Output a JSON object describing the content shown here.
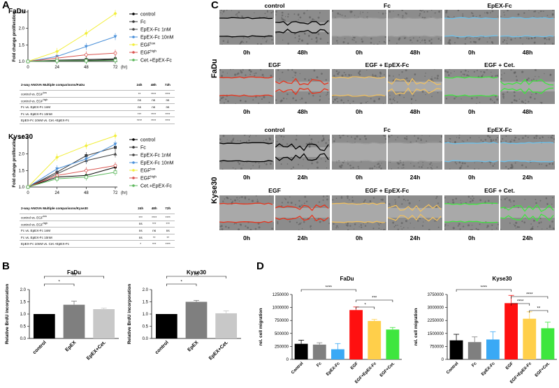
{
  "panels": {
    "A": "A",
    "B": "B",
    "C": "C",
    "D": "D"
  },
  "colors": {
    "control": "#000000",
    "fc": "#333333",
    "epex_1nm": "#444444",
    "epex_10nm": "#4a90d9",
    "egf_low": "#f2ee3a",
    "egf_high": "#d9534f",
    "cet_epex": "#5cb85c",
    "bar_control": "#000000",
    "bar_epex": "#7f7f7f",
    "bar_cet": "#c8c8c8",
    "d_control": "#000000",
    "d_fc": "#7f7f7f",
    "d_epex": "#3aa9f5",
    "d_egf": "#ff1010",
    "d_egf_epex": "#ffcf4a",
    "d_egf_cet": "#3ee63e"
  },
  "a_charts": [
    {
      "title": "FaDu",
      "ylabel": "Fold change proliferation",
      "xlabel": "(hr)",
      "xticks": [
        0,
        24,
        48,
        72
      ],
      "yticks": [
        1.0,
        1.5,
        2.0,
        2.5
      ],
      "ylim": [
        1.0,
        2.5
      ],
      "series": [
        {
          "key": "control",
          "name": "control",
          "values": [
            1.0,
            1.02,
            1.03,
            1.05
          ]
        },
        {
          "key": "fc",
          "name": "Fc",
          "values": [
            1.0,
            1.04,
            1.06,
            1.08
          ]
        },
        {
          "key": "epex_1nm",
          "name": "EpEX-Fc 1nM",
          "values": [
            1.0,
            1.03,
            1.05,
            1.07
          ]
        },
        {
          "key": "epex_10nm",
          "name": "EpEX-Fc 10nM",
          "values": [
            1.0,
            1.15,
            1.45,
            1.75
          ]
        },
        {
          "key": "egf_low",
          "name": "EGF",
          "sup": "low",
          "values": [
            1.0,
            1.3,
            1.85,
            2.45
          ]
        },
        {
          "key": "egf_high",
          "name": "EGF",
          "sup": "high",
          "values": [
            1.0,
            1.1,
            1.2,
            1.25
          ]
        },
        {
          "key": "cet_epex",
          "name": "Cet.+EpEX-Fc",
          "values": [
            1.0,
            1.02,
            1.02,
            1.03
          ]
        }
      ]
    },
    {
      "title": "Kyse30",
      "ylabel": "Fold change proliferation",
      "xlabel": "(hr)",
      "xticks": [
        0,
        24,
        48,
        72
      ],
      "yticks": [
        1.0,
        1.5,
        2.0,
        2.5
      ],
      "ylim": [
        1.0,
        2.5
      ],
      "series": [
        {
          "key": "control",
          "name": "control",
          "values": [
            1.0,
            1.3,
            1.35,
            1.6
          ]
        },
        {
          "key": "fc",
          "name": "Fc",
          "values": [
            1.0,
            1.45,
            1.95,
            2.2
          ]
        },
        {
          "key": "epex_1nm",
          "name": "EpEX-Fc 1nM",
          "values": [
            1.0,
            1.4,
            1.8,
            2.0
          ]
        },
        {
          "key": "epex_10nm",
          "name": "EpEX-Fc 10nM",
          "values": [
            1.0,
            1.55,
            1.85,
            2.3
          ]
        },
        {
          "key": "egf_low",
          "name": "EGF",
          "sup": "low",
          "values": [
            1.0,
            1.9,
            2.25,
            2.55
          ]
        },
        {
          "key": "egf_high",
          "name": "EGF",
          "sup": "high",
          "values": [
            1.0,
            1.35,
            1.5,
            1.65
          ]
        },
        {
          "key": "cet_epex",
          "name": "Cet.+EpEX-Fc",
          "values": [
            1.0,
            1.25,
            1.3,
            1.45
          ]
        }
      ]
    }
  ],
  "a_tables": [
    {
      "head": [
        "2-way ANOVA Multiple comparisons/FaDu",
        "24h",
        "48h",
        "72h"
      ],
      "rows": [
        [
          "control vs. EGF",
          "low",
          "**",
          "****",
          "****"
        ],
        [
          "control vs. EGF",
          "high",
          "ns",
          "ns",
          "ns"
        ],
        [
          "Fc vs. EpEX-Fc 1nM",
          "",
          "ns",
          "ns",
          "ns"
        ],
        [
          "Fc vs. EpEX-Fc 10nM",
          "",
          "***",
          "****",
          "****"
        ],
        [
          "EpEX-Fc 10nM vs. Cet.+EpEX-Fc",
          "",
          "****",
          "****",
          "****"
        ]
      ]
    },
    {
      "head": [
        "2-way ANOVA Multiple comparisons/Kyse30",
        "24h",
        "48h",
        "72h"
      ],
      "rows": [
        [
          "control vs. EGF",
          "low",
          "***",
          "****",
          "****"
        ],
        [
          "control vs. EGF",
          "high",
          "ns",
          "***",
          "***"
        ],
        [
          "Fc vs. EpEX-Fc 1nM",
          "",
          "ns",
          "ns",
          "ns"
        ],
        [
          "Fc vs. EpEX-Fc 10nM",
          "",
          "ns",
          "**",
          "**"
        ],
        [
          "EpEX-Fc 10nM vs. Cet.+EpEX-Fc",
          "",
          "*",
          "***",
          "****"
        ]
      ]
    }
  ],
  "c_panel": {
    "row_labels": [
      "FaDu",
      "Kyse30"
    ],
    "fadu_top": [
      {
        "title": "control",
        "times": [
          "0h",
          "48h"
        ],
        "line": "#000000"
      },
      {
        "title": "Fc",
        "times": [
          "0h",
          "48h"
        ],
        "line": "#999999"
      },
      {
        "title": "EpEX-Fc",
        "times": [
          "0h",
          "48h"
        ],
        "line": "#6ec1ea"
      }
    ],
    "fadu_bot": [
      {
        "title": "EGF",
        "times": [
          "0h",
          "48h"
        ],
        "line": "#e8341c"
      },
      {
        "title": "EGF + EpEX-Fc",
        "times": [
          "0h",
          "48h"
        ],
        "line": "#f0c060"
      },
      {
        "title": "EGF + Cet.",
        "times": [
          "0h",
          "48h"
        ],
        "line": "#3ee63e"
      }
    ],
    "kyse_top": [
      {
        "title": "control",
        "times": [
          "0h",
          "24h"
        ],
        "line": "#000000"
      },
      {
        "title": "Fc",
        "times": [
          "0h",
          "24h"
        ],
        "line": "#999999"
      },
      {
        "title": "EpEX-Fc",
        "times": [
          "0h",
          "24h"
        ],
        "line": "#6ec1ea"
      }
    ],
    "kyse_bot": [
      {
        "title": "EGF",
        "times": [
          "0h",
          "24h"
        ],
        "line": "#e8341c"
      },
      {
        "title": "EGF + EpEX-Fc",
        "times": [
          "0h",
          "24h"
        ],
        "line": "#f0c060"
      },
      {
        "title": "EGF + Cet.",
        "times": [
          "0h",
          "24h"
        ],
        "line": "#3ee63e"
      }
    ]
  },
  "chart_data": [
    {
      "type": "bar",
      "panel": "B",
      "title": "FaDu",
      "ylabel": "Relative BrdU incorporation",
      "ylim": [
        0,
        2.0
      ],
      "yticks": [
        "0.0",
        "0.5",
        "1.0",
        "1.5",
        "2.0"
      ],
      "categories": [
        "control",
        "EpEX",
        "EpEX+Cet."
      ],
      "values": [
        1.0,
        1.38,
        1.2
      ],
      "errors": [
        0,
        0.15,
        0.04
      ],
      "sig": [
        {
          "from": 0,
          "to": 1,
          "label": "*"
        },
        {
          "from": 0,
          "to": 2,
          "label": "ns"
        }
      ]
    },
    {
      "type": "bar",
      "panel": "B",
      "title": "Kyse30",
      "ylabel": "Relative BrdU incorporation",
      "ylim": [
        0,
        2.0
      ],
      "yticks": [
        "0.0",
        "0.5",
        "1.0",
        "1.5",
        "2.0"
      ],
      "categories": [
        "control",
        "EpEX",
        "EpEX+Cet."
      ],
      "values": [
        1.0,
        1.5,
        1.03
      ],
      "errors": [
        0,
        0.06,
        0.1
      ],
      "sig": [
        {
          "from": 0,
          "to": 1,
          "label": "*"
        },
        {
          "from": 0,
          "to": 2,
          "label": "ns"
        }
      ]
    },
    {
      "type": "bar",
      "panel": "D",
      "title": "FaDu",
      "ylabel": "rel. cell migration",
      "ylim": [
        0,
        1250000
      ],
      "yticks": [
        "0",
        "250000",
        "500000",
        "750000",
        "1000000",
        "1250000"
      ],
      "categories": [
        "Control",
        "Fc",
        "EpEX-Fc",
        "EGF",
        "EGF+EpEX-Fc",
        "EGF+Cet."
      ],
      "values": [
        300000,
        285000,
        195000,
        950000,
        740000,
        575000
      ],
      "errors": [
        70000,
        35000,
        110000,
        60000,
        30000,
        40000
      ],
      "sig": [
        {
          "from": 0,
          "to": 3,
          "label": "****"
        },
        {
          "from": 3,
          "to": 5,
          "label": "***"
        },
        {
          "from": 3,
          "to": 4,
          "label": "*"
        }
      ]
    },
    {
      "type": "bar",
      "panel": "D",
      "title": "Kyse30",
      "ylabel": "rel. cell migration",
      "ylim": [
        0,
        3750000
      ],
      "yticks": [
        "0",
        "750000",
        "1500000",
        "2250000",
        "3000000",
        "3750000"
      ],
      "categories": [
        "Control",
        "Fc",
        "EpEX-Fc",
        "EGF",
        "EGF+EpEX-Fc",
        "EGF+Cet."
      ],
      "values": [
        1100000,
        1000000,
        1150000,
        3250000,
        2350000,
        1800000
      ],
      "errors": [
        350000,
        300000,
        450000,
        450000,
        400000,
        350000
      ],
      "sig": [
        {
          "from": 0,
          "to": 3,
          "label": "****"
        },
        {
          "from": 3,
          "to": 5,
          "label": "****"
        },
        {
          "from": 3,
          "to": 4,
          "label": "****"
        },
        {
          "from": 4,
          "to": 5,
          "label": "**"
        }
      ]
    }
  ]
}
